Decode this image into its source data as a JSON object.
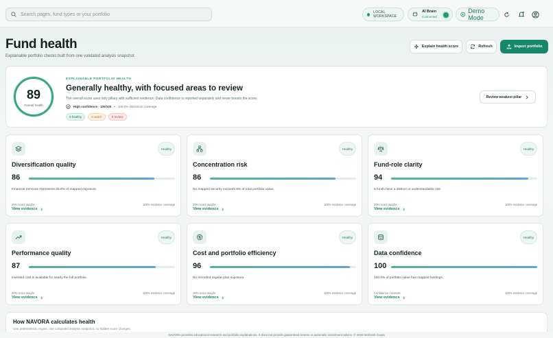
{
  "topbar": {
    "search_placeholder": "Search pages, fund types or your portfolio",
    "workspace": "LOCAL WORKSPACE",
    "ai_title": "AI Brain",
    "ai_status": "Connected",
    "demo": "Demo Mode"
  },
  "header": {
    "title": "Fund health",
    "subtitle": "Explainable portfolio checks built from one validated analysis snapshot.",
    "explain": "Explain health score",
    "refresh": "Refresh",
    "import": "Import portfolio"
  },
  "summary": {
    "score": "89",
    "score_label": "Overall health",
    "eyebrow": "EXPLAINABLE PORTFOLIO HEALTH",
    "headline": "Generally healthy, with focused areas to review",
    "description": "The overall score uses only pillars with sufficient evidence. Data confidence is reported separately and never boosts the score.",
    "confidence": "High confidence - 100/100",
    "coverage": "100.0% disclosure coverage",
    "tag_healthy": "5 healthy",
    "tag_watch": "0 watch",
    "tag_review": "0 review",
    "review_button": "Review weakest pillar"
  },
  "pillars": [
    {
      "name": "Diversification quality",
      "score": "86",
      "fill": 0.86,
      "status": "Healthy",
      "note": "Financial Services represents 25.8% of mapped exposure.",
      "weight": "25% score weight",
      "coverage": "100% evidence coverage",
      "link": "View evidence",
      "icon": "layers-icon"
    },
    {
      "name": "Concentration risk",
      "score": "86",
      "fill": 0.86,
      "status": "Healthy",
      "note": "No mapped security exceeds 8% of total portfolio value.",
      "weight": "20% score weight",
      "coverage": "100% evidence coverage",
      "link": "View evidence",
      "icon": "network-icon"
    },
    {
      "name": "Fund-role clarity",
      "score": "94",
      "fill": 0.94,
      "status": "Healthy",
      "note": "5 funds have a distinct or understandable role.",
      "weight": "20% score weight",
      "coverage": "100% evidence coverage",
      "link": "View evidence",
      "icon": "scale-icon"
    },
    {
      "name": "Performance quality",
      "score": "87",
      "fill": 0.87,
      "status": "Healthy",
      "note": "Invested cost is available for nearly the full portfolio.",
      "weight": "20% score weight",
      "coverage": "100% evidence coverage",
      "link": "View evidence",
      "icon": "trend-up-icon"
    },
    {
      "name": "Cost and portfolio efficiency",
      "score": "96",
      "fill": 0.96,
      "status": "Healthy",
      "note": "No recorded regular-plan exposure.",
      "weight": "15% score weight",
      "coverage": "100% evidence coverage",
      "link": "View evidence",
      "icon": "coin-icon"
    },
    {
      "name": "Data confidence",
      "score": "100",
      "fill": 1.0,
      "status": "Healthy",
      "note": "100.0% of portfolio value has mapped holdings.",
      "weight": "Confidence measure",
      "coverage": "100% evidence coverage",
      "link": "View evidence",
      "icon": "database-icon"
    }
  ],
  "how": {
    "title": "How NAVORA calculates health",
    "text": "One deterministic engine, one computed analysis snapshot, no hidden score changes."
  },
  "footer": "NAVORA provides educational research and portfolio explanations. It does not provide guaranteed returns or automatic investment advice.  © 2026 Mohnish Gupta",
  "colors": {
    "accent": "#17876c",
    "healthy": "#1f9b7a",
    "watch": "#c27a2c",
    "review": "#c2474e"
  }
}
